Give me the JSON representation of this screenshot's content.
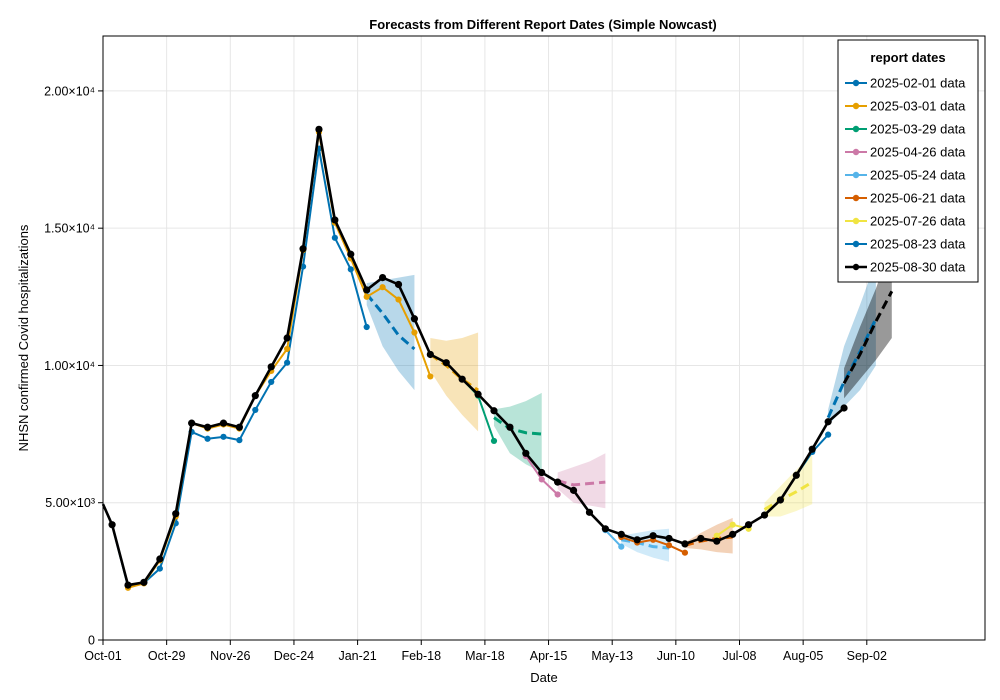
{
  "chart_data": {
    "type": "line",
    "title": "Forecasts from Different Report Dates (Simple Nowcast)",
    "xlabel": "Date",
    "ylabel": "NHSN confirmed Covid hospitalizations",
    "x_start": "2024-10-01",
    "xlim_days": [
      0,
      388
    ],
    "ylim": [
      0,
      22000
    ],
    "x_ticks": [
      {
        "label": "Oct-01",
        "day": 0
      },
      {
        "label": "Oct-29",
        "day": 28
      },
      {
        "label": "Nov-26",
        "day": 56
      },
      {
        "label": "Dec-24",
        "day": 84
      },
      {
        "label": "Jan-21",
        "day": 112
      },
      {
        "label": "Feb-18",
        "day": 140
      },
      {
        "label": "Mar-18",
        "day": 168
      },
      {
        "label": "Apr-15",
        "day": 196
      },
      {
        "label": "May-13",
        "day": 224
      },
      {
        "label": "Jun-10",
        "day": 252
      },
      {
        "label": "Jul-08",
        "day": 280
      },
      {
        "label": "Aug-05",
        "day": 308
      },
      {
        "label": "Sep-02",
        "day": 336
      }
    ],
    "y_ticks": [
      {
        "label": "0",
        "value": 0
      },
      {
        "label": "5.00×10³",
        "value": 5000
      },
      {
        "label": "1.00×10⁴",
        "value": 10000
      },
      {
        "label": "1.50×10⁴",
        "value": 15000
      },
      {
        "label": "2.00×10⁴",
        "value": 20000
      }
    ],
    "grid": true,
    "legend": {
      "title": "report dates",
      "position": "top-right"
    },
    "series": [
      {
        "name": "2025-02-01 data",
        "color": "#0072b2",
        "observed": [
          [
            0,
            4950
          ],
          [
            4,
            4200
          ],
          [
            11,
            1950
          ],
          [
            18,
            2080
          ],
          [
            25,
            2600
          ],
          [
            32,
            4250
          ],
          [
            39,
            7580
          ],
          [
            46,
            7330
          ],
          [
            53,
            7400
          ],
          [
            60,
            7280
          ],
          [
            67,
            8380
          ],
          [
            74,
            9400
          ],
          [
            81,
            10100
          ],
          [
            88,
            13600
          ],
          [
            95,
            17900
          ],
          [
            102,
            14650
          ],
          [
            109,
            13500
          ],
          [
            116,
            11400
          ]
        ],
        "forecast": [
          [
            116,
            12600
          ],
          [
            123,
            11900
          ],
          [
            130,
            11100
          ],
          [
            137,
            10600
          ]
        ],
        "band": [
          [
            116,
            12200,
            13000
          ],
          [
            123,
            10700,
            13100
          ],
          [
            130,
            9800,
            13200
          ],
          [
            137,
            9100,
            13300
          ]
        ]
      },
      {
        "name": "2025-03-01 data",
        "color": "#e69f00",
        "observed": [
          [
            11,
            1900
          ],
          [
            18,
            2060
          ],
          [
            25,
            2900
          ],
          [
            32,
            4500
          ],
          [
            39,
            7900
          ],
          [
            46,
            7700
          ],
          [
            53,
            7850
          ],
          [
            60,
            7700
          ],
          [
            67,
            8900
          ],
          [
            74,
            9800
          ],
          [
            81,
            10600
          ],
          [
            88,
            14200
          ],
          [
            95,
            18500
          ],
          [
            102,
            15200
          ],
          [
            109,
            13900
          ],
          [
            116,
            12500
          ],
          [
            123,
            12850
          ],
          [
            130,
            12400
          ],
          [
            137,
            11200
          ],
          [
            144,
            9600
          ]
        ],
        "forecast": [
          [
            144,
            10400
          ],
          [
            151,
            10000
          ],
          [
            158,
            9500
          ],
          [
            165,
            9100
          ]
        ],
        "band": [
          [
            144,
            9800,
            11000
          ],
          [
            151,
            8900,
            10900
          ],
          [
            158,
            8200,
            11000
          ],
          [
            165,
            7600,
            11200
          ]
        ]
      },
      {
        "name": "2025-03-29 data",
        "color": "#009e73",
        "observed": [
          [
            151,
            10100
          ],
          [
            158,
            9500
          ],
          [
            165,
            8900
          ],
          [
            172,
            7250
          ]
        ],
        "forecast": [
          [
            172,
            8100
          ],
          [
            179,
            7700
          ],
          [
            186,
            7550
          ],
          [
            193,
            7500
          ]
        ],
        "band": [
          [
            172,
            7800,
            8400
          ],
          [
            179,
            6800,
            8500
          ],
          [
            186,
            6400,
            8700
          ],
          [
            193,
            6100,
            9000
          ]
        ]
      },
      {
        "name": "2025-04-26 data",
        "color": "#cc79a7",
        "observed": [
          [
            186,
            6700
          ],
          [
            193,
            5850
          ],
          [
            200,
            5300
          ]
        ],
        "forecast": [
          [
            200,
            5800
          ],
          [
            207,
            5650
          ],
          [
            214,
            5700
          ],
          [
            221,
            5750
          ]
        ],
        "band": [
          [
            200,
            5500,
            6100
          ],
          [
            207,
            5000,
            6300
          ],
          [
            214,
            4900,
            6500
          ],
          [
            221,
            4800,
            6800
          ]
        ]
      },
      {
        "name": "2025-05-24 data",
        "color": "#56b4e9",
        "observed": [
          [
            221,
            4000
          ],
          [
            228,
            3400
          ]
        ],
        "forecast": [
          [
            228,
            3650
          ],
          [
            235,
            3550
          ],
          [
            242,
            3400
          ],
          [
            249,
            3350
          ]
        ],
        "band": [
          [
            228,
            3500,
            3800
          ],
          [
            235,
            3200,
            3900
          ],
          [
            242,
            3000,
            4000
          ],
          [
            249,
            2850,
            4050
          ]
        ]
      },
      {
        "name": "2025-06-21 data",
        "color": "#d55e00",
        "observed": [
          [
            228,
            3750
          ],
          [
            235,
            3550
          ],
          [
            242,
            3650
          ],
          [
            249,
            3450
          ],
          [
            256,
            3180
          ]
        ],
        "forecast": [
          [
            256,
            3450
          ],
          [
            263,
            3600
          ],
          [
            270,
            3700
          ],
          [
            277,
            3750
          ]
        ],
        "band": [
          [
            256,
            3350,
            3550
          ],
          [
            263,
            3300,
            3900
          ],
          [
            270,
            3200,
            4200
          ],
          [
            277,
            3150,
            4450
          ]
        ]
      },
      {
        "name": "2025-07-26 data",
        "color": "#f0e442",
        "observed": [
          [
            270,
            3800
          ],
          [
            277,
            4200
          ],
          [
            284,
            4050
          ]
        ],
        "forecast": [
          [
            291,
            4750
          ],
          [
            298,
            5100
          ],
          [
            305,
            5400
          ],
          [
            312,
            5750
          ]
        ],
        "band": [
          [
            291,
            4500,
            5000
          ],
          [
            298,
            4500,
            5600
          ],
          [
            305,
            4700,
            6200
          ],
          [
            312,
            4950,
            6750
          ]
        ]
      },
      {
        "name": "2025-08-23 data",
        "color": "#0072b2",
        "observed": [
          [
            305,
            6000
          ],
          [
            312,
            6850
          ],
          [
            319,
            7480
          ]
        ],
        "forecast": [
          [
            319,
            8100
          ],
          [
            326,
            9400
          ],
          [
            333,
            10500
          ],
          [
            340,
            11700
          ]
        ],
        "band": [
          [
            319,
            7800,
            8400
          ],
          [
            326,
            8500,
            10700
          ],
          [
            333,
            9100,
            12200
          ],
          [
            340,
            10000,
            13800
          ]
        ]
      },
      {
        "name": "2025-08-30 data",
        "color": "#000000",
        "observed": [
          [
            0,
            4950
          ],
          [
            4,
            4200
          ],
          [
            11,
            2000
          ],
          [
            18,
            2100
          ],
          [
            25,
            2950
          ],
          [
            32,
            4600
          ],
          [
            39,
            7900
          ],
          [
            46,
            7750
          ],
          [
            53,
            7900
          ],
          [
            60,
            7750
          ],
          [
            67,
            8900
          ],
          [
            74,
            9950
          ],
          [
            81,
            11000
          ],
          [
            88,
            14250
          ],
          [
            95,
            18600
          ],
          [
            102,
            15300
          ],
          [
            109,
            14050
          ],
          [
            116,
            12750
          ],
          [
            123,
            13200
          ],
          [
            130,
            12950
          ],
          [
            137,
            11700
          ],
          [
            144,
            10400
          ],
          [
            151,
            10100
          ],
          [
            158,
            9500
          ],
          [
            165,
            8950
          ],
          [
            172,
            8350
          ],
          [
            179,
            7750
          ],
          [
            186,
            6800
          ],
          [
            193,
            6100
          ],
          [
            200,
            5750
          ],
          [
            207,
            5450
          ],
          [
            214,
            4650
          ],
          [
            221,
            4050
          ],
          [
            228,
            3850
          ],
          [
            235,
            3650
          ],
          [
            242,
            3800
          ],
          [
            249,
            3700
          ],
          [
            256,
            3500
          ],
          [
            263,
            3700
          ],
          [
            270,
            3600
          ],
          [
            277,
            3850
          ],
          [
            284,
            4200
          ],
          [
            291,
            4550
          ],
          [
            298,
            5100
          ],
          [
            305,
            6000
          ],
          [
            312,
            6950
          ],
          [
            319,
            7950
          ],
          [
            326,
            8450
          ]
        ],
        "forecast": [
          [
            326,
            9350
          ],
          [
            333,
            10400
          ],
          [
            340,
            11600
          ],
          [
            347,
            12700
          ]
        ],
        "band": [
          [
            326,
            8800,
            9900
          ],
          [
            333,
            9500,
            11400
          ],
          [
            340,
            10200,
            12800
          ],
          [
            347,
            11000,
            14400
          ]
        ]
      }
    ]
  }
}
